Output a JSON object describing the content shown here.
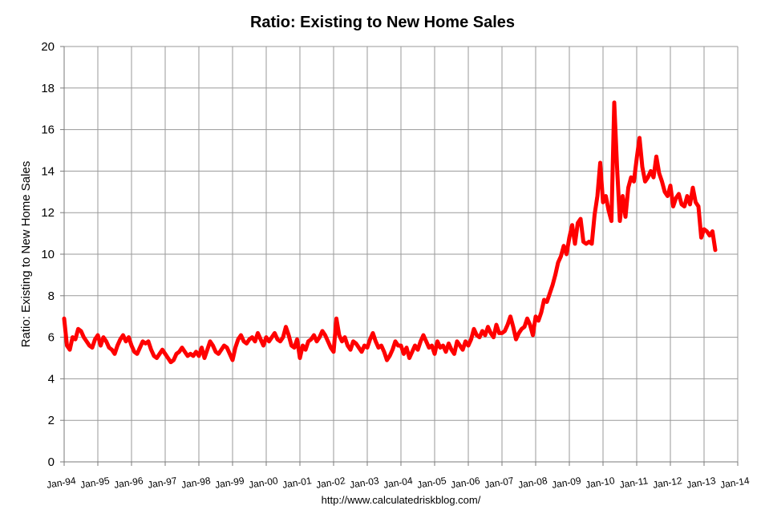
{
  "chart_data": {
    "type": "line",
    "title": "Ratio: Existing to New Home Sales",
    "xlabel": "",
    "ylabel": "Ratio: Existing to New Home Sales",
    "source": "http://www.calculatedriskblog.com/",
    "ylim": [
      0,
      20
    ],
    "yticks": [
      0,
      2,
      4,
      6,
      8,
      10,
      12,
      14,
      16,
      18,
      20
    ],
    "xlim": [
      1994,
      2014
    ],
    "xticks": [
      "Jan-94",
      "Jan-95",
      "Jan-96",
      "Jan-97",
      "Jan-98",
      "Jan-99",
      "Jan-00",
      "Jan-01",
      "Jan-02",
      "Jan-03",
      "Jan-04",
      "Jan-05",
      "Jan-06",
      "Jan-07",
      "Jan-08",
      "Jan-09",
      "Jan-10",
      "Jan-11",
      "Jan-12",
      "Jan-13",
      "Jan-14"
    ],
    "grid": true,
    "series": [
      {
        "name": "Ratio: Existing to New Home Sales",
        "color": "#ff0000",
        "start": "Jan-94",
        "frequency": "monthly",
        "values": [
          6.9,
          5.6,
          5.4,
          6.0,
          5.9,
          6.4,
          6.3,
          6.0,
          5.8,
          5.6,
          5.5,
          5.9,
          6.1,
          5.6,
          6.0,
          5.8,
          5.5,
          5.4,
          5.2,
          5.6,
          5.9,
          6.1,
          5.8,
          6.0,
          5.6,
          5.3,
          5.2,
          5.5,
          5.8,
          5.7,
          5.8,
          5.4,
          5.1,
          5.0,
          5.2,
          5.4,
          5.2,
          5.0,
          4.8,
          4.9,
          5.2,
          5.3,
          5.5,
          5.3,
          5.1,
          5.2,
          5.1,
          5.3,
          5.1,
          5.5,
          5.0,
          5.4,
          5.8,
          5.6,
          5.3,
          5.2,
          5.4,
          5.6,
          5.5,
          5.2,
          4.9,
          5.5,
          5.9,
          6.1,
          5.8,
          5.7,
          5.9,
          6.0,
          5.8,
          6.2,
          5.9,
          5.6,
          6.0,
          5.8,
          6.0,
          6.2,
          5.9,
          5.8,
          6.0,
          6.5,
          6.1,
          5.6,
          5.5,
          5.9,
          5.0,
          5.6,
          5.4,
          5.8,
          5.9,
          6.1,
          5.8,
          6.0,
          6.3,
          6.1,
          5.8,
          5.5,
          5.3,
          6.9,
          6.1,
          5.8,
          6.0,
          5.6,
          5.4,
          5.8,
          5.7,
          5.5,
          5.3,
          5.6,
          5.5,
          5.9,
          6.2,
          5.8,
          5.5,
          5.6,
          5.3,
          4.9,
          5.1,
          5.4,
          5.8,
          5.6,
          5.6,
          5.2,
          5.5,
          5.0,
          5.3,
          5.6,
          5.4,
          5.8,
          6.1,
          5.8,
          5.5,
          5.6,
          5.2,
          5.8,
          5.5,
          5.6,
          5.3,
          5.7,
          5.4,
          5.2,
          5.8,
          5.6,
          5.4,
          5.8,
          5.6,
          5.9,
          6.4,
          6.1,
          6.0,
          6.3,
          6.1,
          6.5,
          6.2,
          6.0,
          6.6,
          6.2,
          6.2,
          6.3,
          6.6,
          7.0,
          6.5,
          5.9,
          6.2,
          6.4,
          6.5,
          6.9,
          6.6,
          6.1,
          7.0,
          6.8,
          7.2,
          7.8,
          7.7,
          8.1,
          8.5,
          9.0,
          9.6,
          9.9,
          10.4,
          10.0,
          10.8,
          11.4,
          10.5,
          11.5,
          11.7,
          10.6,
          10.5,
          10.6,
          10.5,
          11.9,
          12.8,
          14.4,
          12.5,
          12.8,
          12.1,
          11.6,
          17.3,
          14.2,
          11.6,
          12.8,
          11.8,
          13.2,
          13.7,
          13.5,
          14.6,
          15.6,
          14.2,
          13.5,
          13.7,
          14.0,
          13.7,
          14.7,
          13.9,
          13.5,
          13.0,
          12.8,
          13.3,
          12.3,
          12.7,
          12.9,
          12.4,
          12.3,
          12.8,
          12.4,
          13.2,
          12.5,
          12.3,
          10.8,
          11.2,
          11.1,
          10.9,
          11.1,
          10.2
        ]
      }
    ]
  }
}
